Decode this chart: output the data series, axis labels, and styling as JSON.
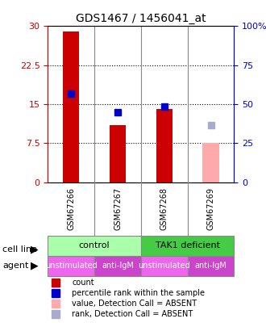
{
  "title": "GDS1467 / 1456041_at",
  "samples": [
    "GSM67266",
    "GSM67267",
    "GSM67268",
    "GSM67269"
  ],
  "count_values": [
    29.0,
    11.0,
    14.0,
    null
  ],
  "count_absent": [
    null,
    null,
    null,
    7.5
  ],
  "percentile_values": [
    17.0,
    13.5,
    14.5,
    null
  ],
  "percentile_absent": [
    null,
    null,
    null,
    11.0
  ],
  "ylim_left": [
    0,
    30
  ],
  "ylim_right": [
    0,
    100
  ],
  "yticks_left": [
    0,
    7.5,
    15,
    22.5,
    30
  ],
  "ytick_labels_left": [
    "0",
    "7.5",
    "15",
    "22.5",
    "30"
  ],
  "yticks_right": [
    0,
    25,
    50,
    75,
    100
  ],
  "ytick_labels_right": [
    "0",
    "25",
    "75",
    "100%"
  ],
  "ytick_labels_right_full": [
    "0",
    "25",
    "50",
    "75",
    "100%"
  ],
  "color_red_bar": "#cc0000",
  "color_pink_bar": "#ffaaaa",
  "color_blue_square": "#0000cc",
  "color_blue_gray_square": "#aaaacc",
  "cell_line_row": [
    "control",
    "control",
    "TAK1 deficient",
    "TAK1 deficient"
  ],
  "agent_row": [
    "unstimulated",
    "anti-IgM",
    "unstimulated",
    "anti-IgM"
  ],
  "cell_line_colors": {
    "control": "#aaffaa",
    "TAK1 deficient": "#44cc44"
  },
  "agent_colors": {
    "unstimulated": "#ee66ee",
    "anti-IgM": "#cc44cc"
  },
  "background_color": "#ffffff",
  "grid_color": "#000000",
  "left_axis_color": "#cc0000",
  "right_axis_color": "#0000cc"
}
